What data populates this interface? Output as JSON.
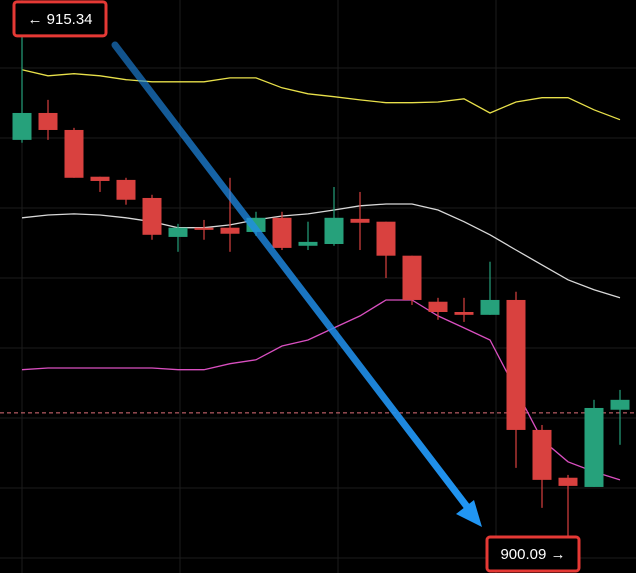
{
  "chart_data": {
    "type": "candlestick",
    "categories": [
      null,
      null,
      null,
      null,
      null,
      null,
      null,
      null,
      null,
      null,
      null,
      null,
      null,
      null,
      null,
      null,
      null,
      null,
      null,
      null,
      null,
      null,
      null,
      null
    ],
    "open": [
      911.95,
      912.71,
      912.23,
      910.91,
      910.82,
      910.31,
      909.21,
      909.47,
      909.47,
      909.35,
      909.75,
      908.96,
      909.01,
      909.72,
      909.64,
      908.68,
      907.38,
      907.09,
      907.01,
      907.43,
      903.76,
      902.41,
      902.15,
      904.33
    ],
    "high": [
      915.34,
      913.08,
      912.29,
      910.91,
      910.88,
      910.4,
      909.58,
      909.69,
      910.88,
      909.92,
      909.92,
      909.64,
      910.62,
      910.48,
      909.64,
      908.68,
      907.49,
      907.49,
      908.51,
      907.66,
      903.9,
      902.49,
      904.61,
      904.89
    ],
    "low": [
      911.87,
      911.95,
      910.88,
      910.48,
      910.12,
      909.13,
      908.79,
      909.13,
      908.79,
      909.24,
      908.84,
      908.84,
      908.96,
      908.84,
      908.05,
      907.29,
      906.87,
      906.81,
      907.01,
      902.69,
      901.56,
      900.09,
      902.15,
      903.34
    ],
    "close": [
      912.71,
      912.23,
      910.88,
      910.79,
      910.26,
      909.27,
      909.47,
      909.41,
      909.3,
      909.75,
      908.9,
      909.07,
      909.75,
      909.61,
      908.68,
      907.43,
      907.09,
      907.01,
      907.43,
      903.76,
      902.35,
      902.18,
      904.38,
      904.61
    ],
    "up_color": "#26a17b",
    "down_color": "#d9413f",
    "bands": [
      {
        "color": "#e8e04a",
        "values": [
          913.93,
          913.76,
          913.82,
          913.76,
          913.65,
          913.59,
          913.59,
          913.59,
          913.7,
          913.7,
          913.42,
          913.25,
          913.17,
          913.08,
          913.0,
          913.0,
          913.02,
          913.11,
          912.71,
          913.02,
          913.14,
          913.14,
          912.8,
          912.52
        ]
      },
      {
        "color": "#d8d8d8",
        "values": [
          909.75,
          909.83,
          909.86,
          909.83,
          909.75,
          909.64,
          909.47,
          909.47,
          909.55,
          909.69,
          909.8,
          909.86,
          909.97,
          910.09,
          910.14,
          910.14,
          909.97,
          909.64,
          909.27,
          908.84,
          908.42,
          908.0,
          907.72,
          907.49
        ]
      },
      {
        "color": "#d94fc0",
        "values": [
          905.46,
          905.51,
          905.51,
          905.51,
          905.51,
          905.51,
          905.46,
          905.46,
          905.63,
          905.74,
          906.13,
          906.3,
          906.64,
          906.98,
          907.43,
          907.43,
          906.98,
          906.64,
          906.3,
          904.89,
          903.48,
          902.86,
          902.58,
          902.35
        ]
      }
    ],
    "price_line": 904.24,
    "price_line_color": "#e0707a",
    "annotations": [
      {
        "label": "← 915.34",
        "value": 915.34
      },
      {
        "label": "900.09 →",
        "value": 900.09
      }
    ],
    "ylim": [
      899.72,
      915.9
    ],
    "grid": true
  }
}
